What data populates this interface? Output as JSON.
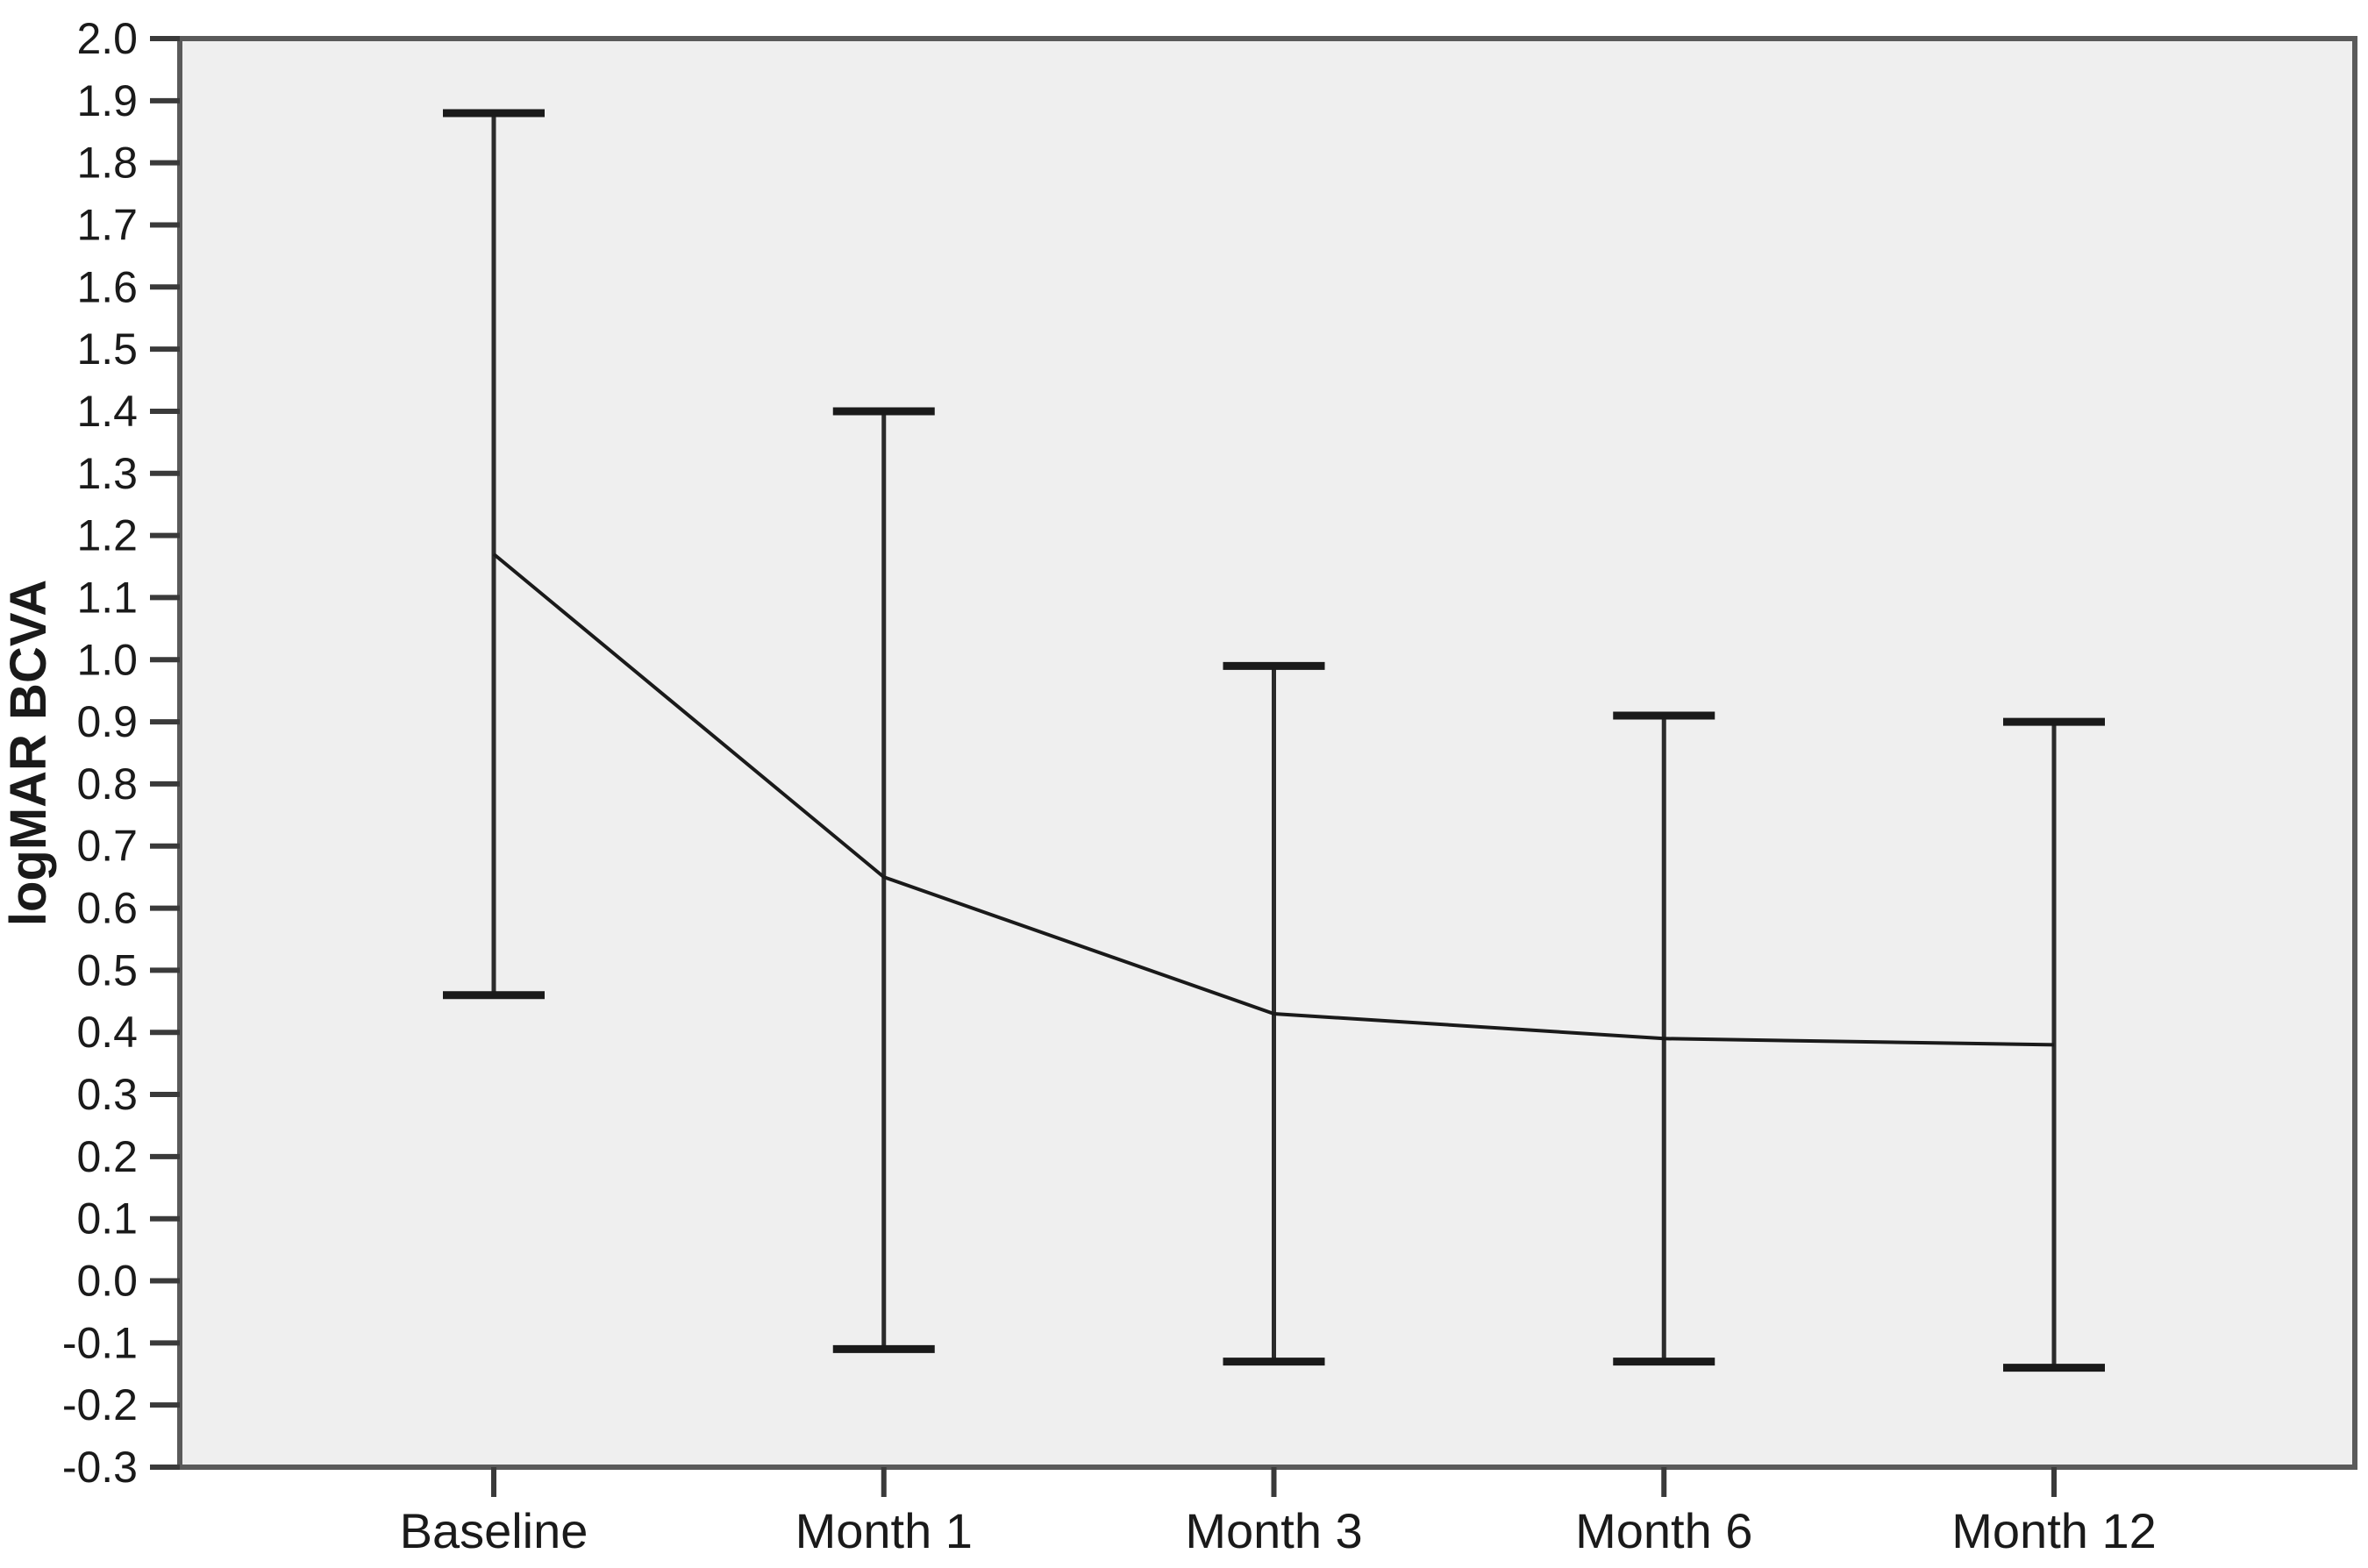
{
  "chart_data": {
    "type": "line",
    "categories": [
      "Baseline",
      "Month 1",
      "Month 3",
      "Month 6",
      "Month 12"
    ],
    "series": [
      {
        "name": "Mean logMAR BCVA",
        "values": [
          1.17,
          0.65,
          0.43,
          0.39,
          0.38
        ],
        "error_upper": [
          1.88,
          1.4,
          0.99,
          0.91,
          0.9
        ],
        "error_lower": [
          0.46,
          -0.11,
          -0.13,
          -0.13,
          -0.14
        ]
      }
    ],
    "title": "",
    "xlabel": "",
    "ylabel": "logMAR BCVA",
    "ylim": [
      -0.3,
      2.0
    ],
    "ytick_step": 0.1,
    "yticks": [
      "2.0",
      "1.9",
      "1.8",
      "1.7",
      "1.6",
      "1.5",
      "1.4",
      "1.3",
      "1.2",
      "1.1",
      "1.0",
      "0.9",
      "0.8",
      "0.7",
      "0.6",
      "0.5",
      "0.4",
      "0.3",
      "0.2",
      "0.1",
      "0.0",
      "-0.1",
      "-0.2",
      "-0.3"
    ],
    "grid": false,
    "legend": false,
    "error_bar_style": "T-caps",
    "colors": {
      "plot_background": "#efefef",
      "outer_background": "#ffffff",
      "frame": "#5a5a5a",
      "tick": "#3a3a3a",
      "error_bar": "#2b2b2b",
      "error_cap": "#1a1a1a",
      "mean_line": "#1a1a1a",
      "text": "#1a1a1a"
    }
  }
}
